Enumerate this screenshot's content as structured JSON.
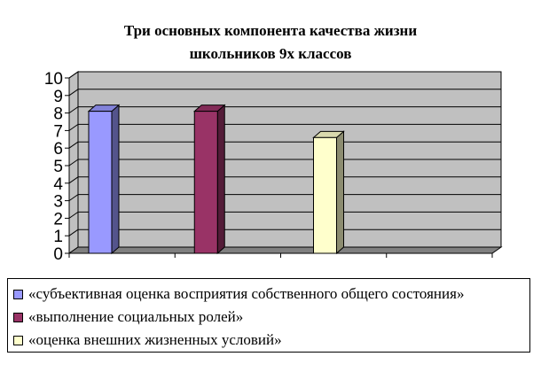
{
  "chart_data": {
    "type": "bar",
    "title_lines": [
      "Три основных компонента качества жизни",
      "школьников 9х классов"
    ],
    "categories": [
      "«субъективная оценка восприятия собственного общего состояния»",
      "«выполнение социальных ролей»",
      "«оценка внешних жизненных условий»"
    ],
    "series": [
      {
        "name": "«субъективная оценка восприятия собственного общего состояния»",
        "value": 8.1,
        "color": "#9999ff"
      },
      {
        "name": "«выполнение социальных ролей»",
        "value": 8.1,
        "color": "#993366"
      },
      {
        "name": "«оценка внешних жизненных условий»",
        "value": 6.6,
        "color": "#ffffcc"
      }
    ],
    "ylim": [
      0,
      10
    ],
    "yticks": [
      "0",
      "1",
      "2",
      "3",
      "4",
      "5",
      "6",
      "7",
      "8",
      "9",
      "10"
    ],
    "grid": true,
    "style": "3d",
    "wall_color": "#c0c0c0",
    "floor_color": "#808080",
    "legend_position": "bottom"
  }
}
